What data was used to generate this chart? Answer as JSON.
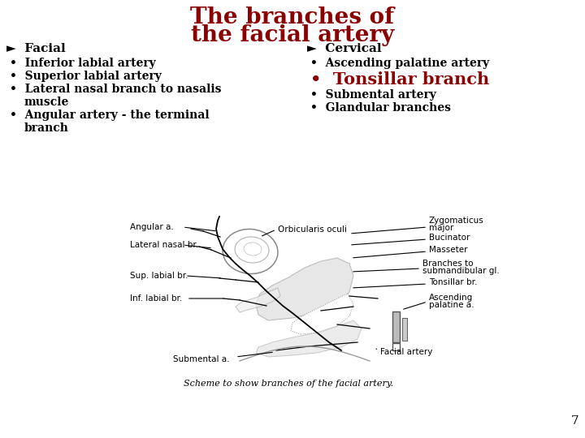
{
  "title_line1": "The branches of",
  "title_line2": "the facial artery",
  "title_color": "#8B0000",
  "title_fontsize": 20,
  "background_color": "#ffffff",
  "left_header": "Facial",
  "left_header_symbol": "►",
  "left_items": [
    "Inferior labial artery",
    "Superior labial artery",
    "Lateral nasal branch to nasalis\nmuscle",
    "Angular artery - the terminal\nbranch"
  ],
  "right_header": "Cervical",
  "right_header_symbol": "►",
  "right_items_normal": [
    "Ascending palatine artery"
  ],
  "right_item_highlight": "Tonsillar branch",
  "right_item_highlight_color": "#8B0000",
  "right_items_after": [
    "Submental artery",
    "Glandular branches"
  ],
  "text_color": "#000000",
  "bold_font": "bold",
  "item_fontsize": 10,
  "header_fontsize": 11,
  "highlight_fontsize": 15,
  "page_number": "7",
  "image_caption": "Scheme to show branches of the facial artery.",
  "bullet_symbol": "•",
  "diagram_label_fontsize": 7.5
}
